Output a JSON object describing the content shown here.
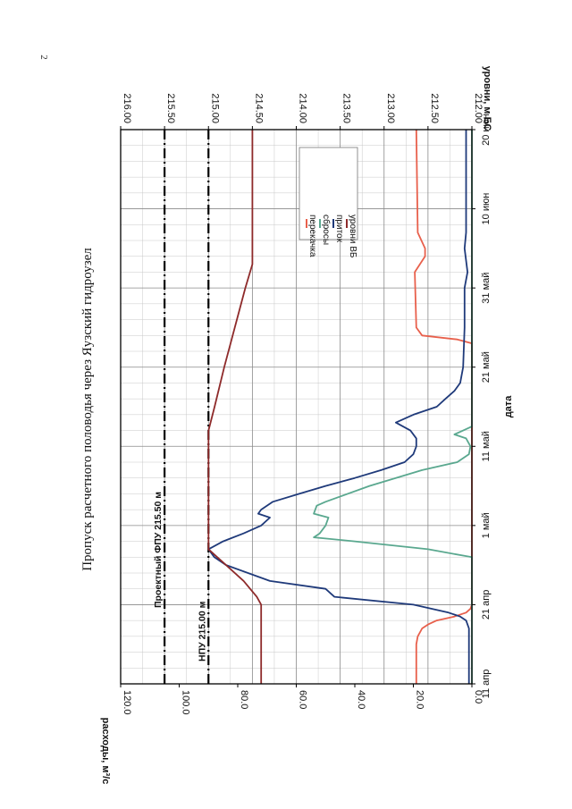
{
  "page_number": "2",
  "chart_data": {
    "type": "line",
    "title": "Пропуск расчетного половодья через Яузский гидроузел",
    "xlabel": "дата",
    "ylabel_left": "расходы, м³/с",
    "ylabel_right": "уровни, м БС",
    "x_unit": "days since 11 апр",
    "x_ticks": [
      "11 апр",
      "21 апр",
      "1 май",
      "11 май",
      "21 май",
      "31 май",
      "10 июн",
      "20 июн"
    ],
    "x_range": [
      0,
      70
    ],
    "y_left_ticks": [
      "0.0",
      "20.0",
      "40.0",
      "60.0",
      "80.0",
      "100.0",
      "120.0"
    ],
    "y_left_range": [
      0,
      120
    ],
    "y_right_ticks": [
      "212.00",
      "212.50",
      "213.00",
      "213.50",
      "214.00",
      "214.50",
      "215.00",
      "215.50",
      "216.00"
    ],
    "y_right_range": [
      212.0,
      216.0
    ],
    "grid": true,
    "legend": {
      "position": "top-right",
      "entries": [
        "перекачка",
        "сбросы",
        "приток",
        "уровни ВБ"
      ]
    },
    "reference_lines": [
      {
        "label": "Проектный ФПУ 215.50 м",
        "level": 215.5,
        "axis": "right"
      },
      {
        "label": "НПУ 215.00 м",
        "level": 215.0,
        "axis": "right"
      }
    ],
    "series": [
      {
        "name": "перекачка",
        "color": "#e8604c",
        "axis": "left",
        "points": [
          [
            0,
            19
          ],
          [
            5,
            19
          ],
          [
            6,
            18.5
          ],
          [
            7,
            17
          ],
          [
            7.5,
            15
          ],
          [
            8,
            12
          ],
          [
            8.5,
            6
          ],
          [
            9,
            2
          ],
          [
            9.5,
            0.5
          ],
          [
            10,
            0
          ],
          [
            43,
            0
          ],
          [
            43.5,
            5
          ],
          [
            44,
            17
          ],
          [
            45,
            19
          ],
          [
            52,
            19.5
          ],
          [
            54,
            16
          ],
          [
            55,
            16
          ],
          [
            57,
            18.5
          ],
          [
            70,
            19
          ]
        ]
      },
      {
        "name": "сбросы",
        "color": "#5aa88f",
        "axis": "left",
        "points": [
          [
            0,
            0
          ],
          [
            16,
            0
          ],
          [
            17,
            15
          ],
          [
            18,
            40
          ],
          [
            18.5,
            54
          ],
          [
            19,
            52
          ],
          [
            20,
            50
          ],
          [
            21,
            49
          ],
          [
            21.5,
            54
          ],
          [
            22.5,
            53
          ],
          [
            23,
            50
          ],
          [
            25,
            35
          ],
          [
            27,
            17
          ],
          [
            28,
            5
          ],
          [
            29,
            1
          ],
          [
            30,
            0.5
          ],
          [
            31,
            2
          ],
          [
            31.5,
            6
          ],
          [
            32,
            3
          ],
          [
            32.5,
            0
          ],
          [
            70,
            0
          ]
        ]
      },
      {
        "name": "приток",
        "color": "#1f3a7a",
        "axis": "left",
        "points": [
          [
            0,
            1
          ],
          [
            7,
            1
          ],
          [
            8,
            2
          ],
          [
            8.5,
            4
          ],
          [
            9,
            8
          ],
          [
            10,
            20
          ],
          [
            11,
            47
          ],
          [
            12,
            50
          ],
          [
            13,
            69
          ],
          [
            15,
            84
          ],
          [
            16,
            88
          ],
          [
            17,
            90
          ],
          [
            18,
            85
          ],
          [
            19,
            78
          ],
          [
            20,
            72
          ],
          [
            21,
            69
          ],
          [
            21.5,
            73
          ],
          [
            22,
            72
          ],
          [
            23,
            68
          ],
          [
            24,
            59
          ],
          [
            25,
            50
          ],
          [
            26,
            40
          ],
          [
            27,
            31
          ],
          [
            28,
            23
          ],
          [
            29,
            20
          ],
          [
            30,
            19
          ],
          [
            31,
            19
          ],
          [
            32,
            21
          ],
          [
            33,
            26
          ],
          [
            34,
            20
          ],
          [
            35,
            12
          ],
          [
            36,
            9
          ],
          [
            37,
            6
          ],
          [
            38,
            4
          ],
          [
            40,
            3
          ],
          [
            45,
            2.5
          ],
          [
            50,
            2.5
          ],
          [
            52,
            1.5
          ],
          [
            55,
            2.5
          ],
          [
            57,
            2
          ],
          [
            60,
            2
          ],
          [
            65,
            2
          ],
          [
            70,
            2
          ]
        ]
      },
      {
        "name": "уровни ВБ",
        "color": "#8e2a2a",
        "axis": "right",
        "points": [
          [
            0,
            214.4
          ],
          [
            10,
            214.4
          ],
          [
            11,
            214.45
          ],
          [
            13,
            214.6
          ],
          [
            15,
            214.8
          ],
          [
            16,
            214.9
          ],
          [
            17,
            215.0
          ],
          [
            32,
            215.0
          ],
          [
            35,
            214.93
          ],
          [
            40,
            214.82
          ],
          [
            45,
            214.7
          ],
          [
            50,
            214.58
          ],
          [
            53,
            214.5
          ],
          [
            70,
            214.5
          ]
        ]
      }
    ]
  }
}
